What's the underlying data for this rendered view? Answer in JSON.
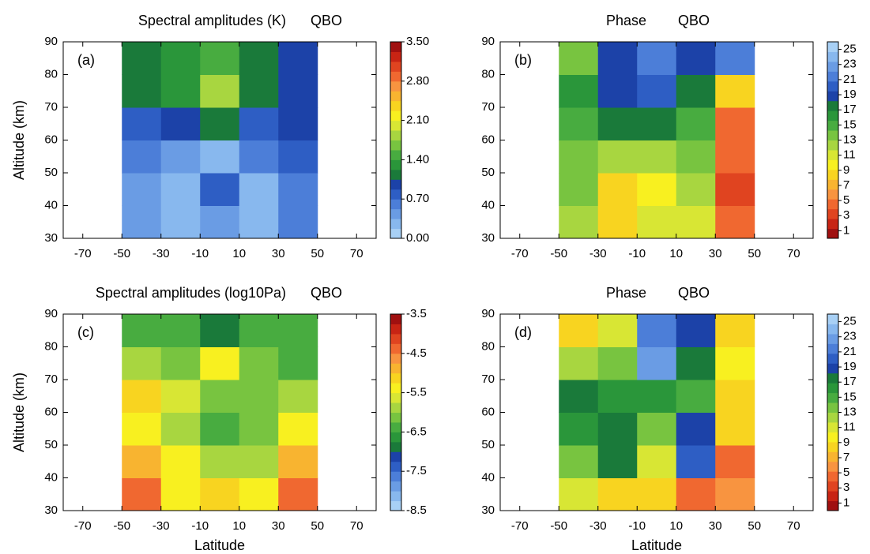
{
  "chart_data": [
    {
      "type": "heatmap",
      "title": "Spectral amplitudes (K)",
      "tag": "QBO",
      "panel_label": "(a)",
      "ylabel": "Altitude (km)",
      "x": [
        -40,
        -20,
        0,
        20,
        40
      ],
      "y": [
        35,
        45,
        55,
        65,
        75,
        85
      ],
      "z": [
        [
          0.5,
          0.2,
          0.5,
          0.3,
          0.6
        ],
        [
          0.5,
          0.3,
          0.8,
          0.3,
          0.6
        ],
        [
          0.6,
          0.4,
          0.3,
          0.6,
          0.8
        ],
        [
          0.8,
          1.0,
          1.1,
          0.8,
          0.9
        ],
        [
          1.1,
          1.3,
          1.8,
          1.1,
          0.9
        ],
        [
          1.2,
          1.3,
          1.5,
          1.2,
          0.9
        ]
      ],
      "xlim": [
        -80,
        80
      ],
      "ylim": [
        30,
        90
      ],
      "xticks": [
        -70,
        -50,
        -30,
        -10,
        10,
        30,
        50,
        70
      ],
      "yticks": [
        30,
        40,
        50,
        60,
        70,
        80,
        90
      ],
      "zlim": [
        0,
        3.5
      ],
      "zticks": [
        {
          "value": 0,
          "label": "0.00"
        },
        {
          "value": 0.7,
          "label": "0.70"
        },
        {
          "value": 1.4,
          "label": "1.40"
        },
        {
          "value": 2.1,
          "label": "2.10"
        },
        {
          "value": 2.8,
          "label": "2.80"
        },
        {
          "value": 3.5,
          "label": "3.50"
        }
      ],
      "colors": [
        "#a8d0f5",
        "#88b8ee",
        "#6a9ce4",
        "#4c7ed8",
        "#2e5ec4",
        "#1c42a8",
        "#1a7a3a",
        "#2a963a",
        "#48ac40",
        "#78c440",
        "#a8d640",
        "#d8e634",
        "#f8f020",
        "#f8d420",
        "#f8b430",
        "#f89440",
        "#f06830",
        "#e04420",
        "#c82414",
        "#a01010"
      ]
    },
    {
      "type": "heatmap",
      "title": "Phase",
      "tag": "QBO",
      "panel_label": "(b)",
      "x": [
        -40,
        -20,
        0,
        20,
        40
      ],
      "y": [
        35,
        45,
        55,
        65,
        75,
        85
      ],
      "z": [
        [
          12,
          9,
          11,
          11,
          5
        ],
        [
          13,
          8,
          10,
          12,
          3
        ],
        [
          13,
          12,
          12,
          13,
          4
        ],
        [
          15,
          17,
          17,
          15,
          5
        ],
        [
          16,
          19,
          20,
          18,
          9
        ],
        [
          13,
          19,
          21,
          19,
          22
        ]
      ],
      "xlim": [
        -80,
        80
      ],
      "ylim": [
        30,
        90
      ],
      "xticks": [
        -70,
        -50,
        -30,
        -10,
        10,
        30,
        50,
        70
      ],
      "yticks": [
        30,
        40,
        50,
        60,
        70,
        80,
        90
      ],
      "zlim": [
        0,
        26
      ],
      "zticks": [
        1,
        3,
        5,
        7,
        9,
        11,
        13,
        15,
        17,
        19,
        21,
        23,
        25
      ],
      "colors": [
        "#a01010",
        "#c82414",
        "#e04420",
        "#f06830",
        "#f89440",
        "#f8b430",
        "#f8d420",
        "#f8f020",
        "#d8e634",
        "#a8d640",
        "#78c440",
        "#48ac40",
        "#2a963a",
        "#1a7a3a",
        "#1c42a8",
        "#2e5ec4",
        "#4c7ed8",
        "#6a9ce4",
        "#88b8ee",
        "#a8d0f5"
      ]
    },
    {
      "type": "heatmap",
      "title": "Spectral amplitudes (log10Pa)",
      "tag": "QBO",
      "panel_label": "(c)",
      "ylabel": "Altitude (km)",
      "xlabel": "Latitude",
      "x": [
        -40,
        -20,
        0,
        20,
        40
      ],
      "y": [
        35,
        45,
        55,
        65,
        75,
        85
      ],
      "z": [
        [
          -4.5,
          -5.3,
          -5.2,
          -5.5,
          -4.5
        ],
        [
          -5.0,
          -5.5,
          -5.8,
          -5.8,
          -4.8
        ],
        [
          -5.3,
          -5.8,
          -6.3,
          -6.2,
          -5.3
        ],
        [
          -5.2,
          -5.6,
          -6.2,
          -6.2,
          -6.0
        ],
        [
          -6.0,
          -6.2,
          -5.5,
          -6.2,
          -6.5
        ],
        [
          -6.5,
          -6.5,
          -6.8,
          -6.5,
          -6.3
        ]
      ],
      "xlim": [
        -80,
        80
      ],
      "ylim": [
        30,
        90
      ],
      "xticks": [
        -70,
        -50,
        -30,
        -10,
        10,
        30,
        50,
        70
      ],
      "yticks": [
        30,
        40,
        50,
        60,
        70,
        80,
        90
      ],
      "zlim": [
        -8.5,
        -3.5
      ],
      "zticks": [
        -8.5,
        -7.5,
        -6.5,
        -5.5,
        -4.5,
        -3.5
      ],
      "colors": [
        "#a8d0f5",
        "#88b8ee",
        "#6a9ce4",
        "#4c7ed8",
        "#2e5ec4",
        "#1c42a8",
        "#1a7a3a",
        "#2a963a",
        "#48ac40",
        "#78c440",
        "#a8d640",
        "#d8e634",
        "#f8f020",
        "#f8d420",
        "#f8b430",
        "#f89440",
        "#f06830",
        "#e04420",
        "#c82414",
        "#a01010"
      ]
    },
    {
      "type": "heatmap",
      "title": "Phase",
      "tag": "QBO",
      "panel_label": "(d)",
      "xlabel": "Latitude",
      "x": [
        -40,
        -20,
        0,
        20,
        40
      ],
      "y": [
        35,
        45,
        55,
        65,
        75,
        85
      ],
      "z": [
        [
          11,
          8,
          8,
          5,
          6
        ],
        [
          13,
          18,
          11,
          20,
          5
        ],
        [
          16,
          18,
          14,
          19,
          8
        ],
        [
          17,
          16,
          16,
          15,
          8
        ],
        [
          12,
          14,
          23,
          17,
          10
        ],
        [
          9,
          11,
          22,
          19,
          8
        ]
      ],
      "xlim": [
        -80,
        80
      ],
      "ylim": [
        30,
        90
      ],
      "xticks": [
        -70,
        -50,
        -30,
        -10,
        10,
        30,
        50,
        70
      ],
      "yticks": [
        30,
        40,
        50,
        60,
        70,
        80,
        90
      ],
      "zlim": [
        0,
        26
      ],
      "zticks": [
        1,
        3,
        5,
        7,
        9,
        11,
        13,
        15,
        17,
        19,
        21,
        23,
        25
      ],
      "colors": [
        "#a01010",
        "#c82414",
        "#e04420",
        "#f06830",
        "#f89440",
        "#f8b430",
        "#f8d420",
        "#f8f020",
        "#d8e634",
        "#a8d640",
        "#78c440",
        "#48ac40",
        "#2a963a",
        "#1a7a3a",
        "#1c42a8",
        "#2e5ec4",
        "#4c7ed8",
        "#6a9ce4",
        "#88b8ee",
        "#a8d0f5"
      ]
    }
  ]
}
